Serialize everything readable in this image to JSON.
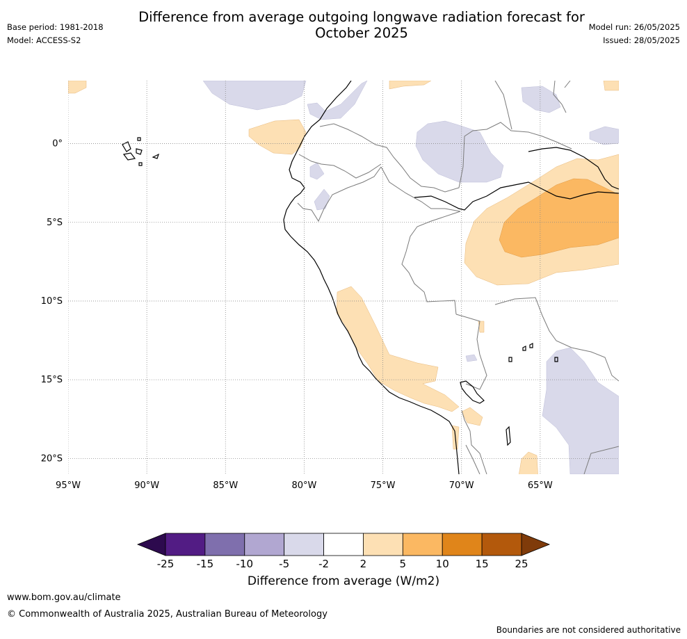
{
  "title_line1": "Difference from average outgoing longwave radiation forecast for",
  "title_line2": "October 2025",
  "meta_left": {
    "base_period": "Base period: 1981-2018",
    "model": "Model: ACCESS-S2"
  },
  "meta_right": {
    "model_run": "Model run: 26/05/2025",
    "issued": "Issued: 28/05/2025"
  },
  "map": {
    "lon_range": [
      -95,
      -60
    ],
    "lat_range": [
      -21,
      4
    ],
    "latitudes": [
      {
        "value": 0,
        "label": "0°"
      },
      {
        "value": -5,
        "label": "5°S"
      },
      {
        "value": -10,
        "label": "10°S"
      },
      {
        "value": -15,
        "label": "15°S"
      },
      {
        "value": -20,
        "label": "20°S"
      }
    ],
    "longitudes": [
      {
        "value": -95,
        "label": "95°W"
      },
      {
        "value": -90,
        "label": "90°W"
      },
      {
        "value": -85,
        "label": "85°W"
      },
      {
        "value": -80,
        "label": "80°W"
      },
      {
        "value": -75,
        "label": "75°W"
      },
      {
        "value": -70,
        "label": "70°W"
      },
      {
        "value": -65,
        "label": "65°W"
      }
    ],
    "colors": {
      "coast": "#000000",
      "border": "#7a7a7a",
      "grid": "#888888",
      "pos_2_5": "#fde0b4",
      "pos_5_10": "#fbb862",
      "neg_2_5": "#d9d9ea"
    }
  },
  "colorbar": {
    "ticks": [
      "-25",
      "-15",
      "-10",
      "-5",
      "-2",
      "2",
      "5",
      "10",
      "15",
      "25"
    ],
    "colors": [
      "#521c84",
      "#7f6fad",
      "#b1a7d1",
      "#d9d9ea",
      "#ffffff",
      "#fde0b4",
      "#fbb862",
      "#e0851a",
      "#b3590c"
    ],
    "under_color": "#2d0a4e",
    "over_color": "#7f3b0a",
    "label": "Difference from average (W/m2)"
  },
  "footer": {
    "url": "www.bom.gov.au/climate",
    "copyright": "© Commonwealth of Australia 2025, Australian Bureau of Meteorology",
    "disclaimer": "Boundaries are not considered authoritative"
  }
}
